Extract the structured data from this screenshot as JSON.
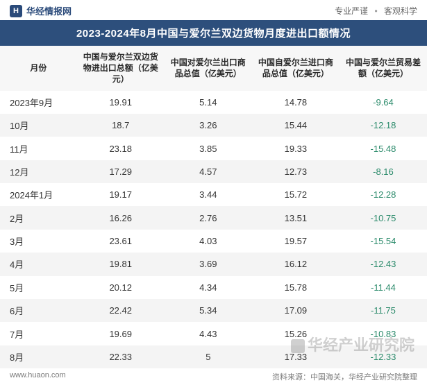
{
  "header": {
    "brand": "华经情报网",
    "tagline_left": "专业严谨",
    "tagline_right": "客观科学"
  },
  "title": "2023-2024年8月中国与爱尔兰双边货物月度进出口额情况",
  "table": {
    "columns": [
      "月份",
      "中国与爱尔兰双边货物进出口总额（亿美元）",
      "中国对爱尔兰出口商品总值（亿美元）",
      "中国自爱尔兰进口商品总值（亿美元）",
      "中国与爱尔兰贸易差额（亿美元）"
    ],
    "rows": [
      {
        "month": "2023年9月",
        "total": "19.91",
        "export": "5.14",
        "import": "14.78",
        "balance": "-9.64"
      },
      {
        "month": "10月",
        "total": "18.7",
        "export": "3.26",
        "import": "15.44",
        "balance": "-12.18"
      },
      {
        "month": "11月",
        "total": "23.18",
        "export": "3.85",
        "import": "19.33",
        "balance": "-15.48"
      },
      {
        "month": "12月",
        "total": "17.29",
        "export": "4.57",
        "import": "12.73",
        "balance": "-8.16"
      },
      {
        "month": "2024年1月",
        "total": "19.17",
        "export": "3.44",
        "import": "15.72",
        "balance": "-12.28"
      },
      {
        "month": "2月",
        "total": "16.26",
        "export": "2.76",
        "import": "13.51",
        "balance": "-10.75"
      },
      {
        "month": "3月",
        "total": "23.61",
        "export": "4.03",
        "import": "19.57",
        "balance": "-15.54"
      },
      {
        "month": "4月",
        "total": "19.81",
        "export": "3.69",
        "import": "16.12",
        "balance": "-12.43"
      },
      {
        "month": "5月",
        "total": "20.12",
        "export": "4.34",
        "import": "15.78",
        "balance": "-11.44"
      },
      {
        "month": "6月",
        "total": "22.42",
        "export": "5.34",
        "import": "17.09",
        "balance": "-11.75"
      },
      {
        "month": "7月",
        "total": "19.69",
        "export": "4.43",
        "import": "15.26",
        "balance": "-10.83"
      },
      {
        "month": "8月",
        "total": "22.33",
        "export": "5",
        "import": "17.33",
        "balance": "-12.33"
      }
    ]
  },
  "footer": {
    "site": "www.huaon.com",
    "source": "资料来源：中国海关，华经产业研究院整理"
  },
  "watermark": "华经产业研究院",
  "style": {
    "title_bg": "#2d4f7c",
    "title_color": "#ffffff",
    "header_row_bg": "#f7f7f7",
    "row_even_bg": "#f4f4f4",
    "row_odd_bg": "#ffffff",
    "negative_color": "#2a8a6a",
    "text_color": "#333333",
    "title_fontsize": 15,
    "header_fontsize": 12,
    "cell_fontsize": 13
  }
}
